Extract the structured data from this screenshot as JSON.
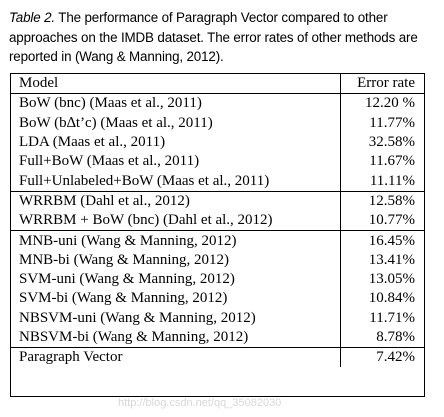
{
  "caption": {
    "label": "Table 2.",
    "text": " The performance of Paragraph Vector compared to other approaches on the IMDB dataset. The error rates of other methods are reported in (Wang & Manning, 2012)."
  },
  "table": {
    "headers": [
      "Model",
      "Error rate"
    ],
    "groups": [
      [
        {
          "model": "BoW (bnc) (Maas et al., 2011)",
          "error": "12.20 %"
        },
        {
          "model": "BoW (b∆t’c) (Maas et al., 2011)",
          "error": "11.77%"
        },
        {
          "model": "LDA (Maas et al., 2011)",
          "error": "32.58%"
        },
        {
          "model": "Full+BoW (Maas et al., 2011)",
          "error": "11.67%"
        },
        {
          "model": "Full+Unlabeled+BoW (Maas et al., 2011)",
          "error": "11.11%"
        }
      ],
      [
        {
          "model": "WRRBM (Dahl et al., 2012)",
          "error": "12.58%"
        },
        {
          "model": "WRRBM + BoW (bnc) (Dahl et al., 2012)",
          "error": "10.77%"
        }
      ],
      [
        {
          "model": "MNB-uni (Wang & Manning, 2012)",
          "error": "16.45%"
        },
        {
          "model": "MNB-bi (Wang & Manning, 2012)",
          "error": "13.41%"
        },
        {
          "model": "SVM-uni (Wang & Manning, 2012)",
          "error": "13.05%"
        },
        {
          "model": "SVM-bi (Wang & Manning, 2012)",
          "error": "10.84%"
        },
        {
          "model": "NBSVM-uni (Wang & Manning, 2012)",
          "error": "11.71%"
        },
        {
          "model": "NBSVM-bi (Wang & Manning, 2012)",
          "error": "8.78%"
        }
      ],
      [
        {
          "model": "Paragraph Vector",
          "error": "7.42%"
        }
      ]
    ]
  },
  "watermark": "http://blog.csdn.net/qq_35082030"
}
